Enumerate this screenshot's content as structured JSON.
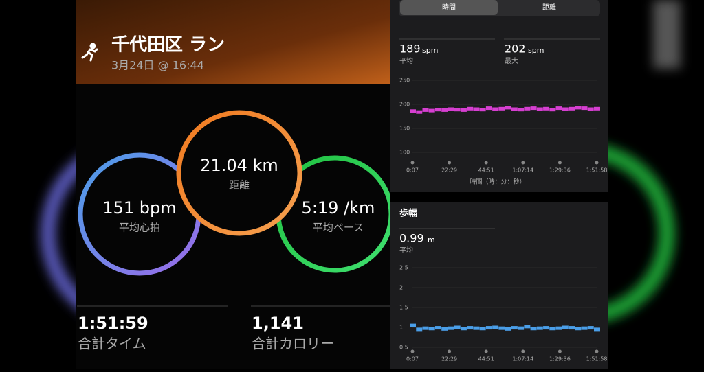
{
  "header": {
    "title": "千代田区 ラン",
    "date": "3月24日 @ 16:44"
  },
  "rings": [
    {
      "value": "21.04 km",
      "label": "距離"
    },
    {
      "value": "151 bpm",
      "label": "平均心拍"
    },
    {
      "value": "5:19 /km",
      "label": "平均ペース"
    }
  ],
  "stats": [
    {
      "value": "1:51:59",
      "label": "合計タイム"
    },
    {
      "value": "1,141",
      "label": "合計カロリー"
    }
  ],
  "tabs": [
    "時間",
    "距離"
  ],
  "cadence": {
    "avg": {
      "value": "189",
      "unit": "spm",
      "label": "平均"
    },
    "max": {
      "value": "202",
      "unit": "spm",
      "label": "最大"
    },
    "chart": {
      "type": "scatter",
      "ylim": [
        100,
        250
      ],
      "yticks": [
        250,
        200,
        150,
        100
      ],
      "color": "#d63fd1",
      "values": [
        186,
        184,
        188,
        187,
        189,
        188,
        190,
        189,
        188,
        191,
        190,
        189,
        192,
        190,
        191,
        193,
        190,
        189,
        191,
        192,
        190,
        191,
        189,
        192,
        190,
        191,
        193,
        192,
        190,
        191
      ],
      "xticks": [
        "0:07",
        "22:29",
        "44:51",
        "1:07:14",
        "1:29:36",
        "1:51:58"
      ],
      "xlabel": "時間（時：分：秒）"
    }
  },
  "stride": {
    "title": "歩幅",
    "avg": {
      "value": "0.99",
      "unit": "m",
      "label": "平均"
    },
    "chart": {
      "type": "scatter",
      "ylim": [
        0.5,
        2.5
      ],
      "yticks": [
        2.5,
        2,
        1.5,
        1,
        0.5
      ],
      "color": "#4a9ee8",
      "values": [
        1.05,
        0.95,
        0.98,
        0.97,
        0.99,
        0.96,
        0.98,
        1.0,
        0.97,
        0.99,
        0.98,
        0.97,
        0.99,
        1.0,
        0.98,
        0.96,
        0.99,
        0.98,
        1.02,
        0.97,
        0.98,
        0.99,
        0.97,
        0.98,
        1.0,
        0.99,
        0.97,
        0.98,
        0.99,
        0.95
      ],
      "xticks": [
        "0:07",
        "22:29",
        "44:51",
        "1:07:14",
        "1:29:36",
        "1:51:58"
      ]
    }
  }
}
